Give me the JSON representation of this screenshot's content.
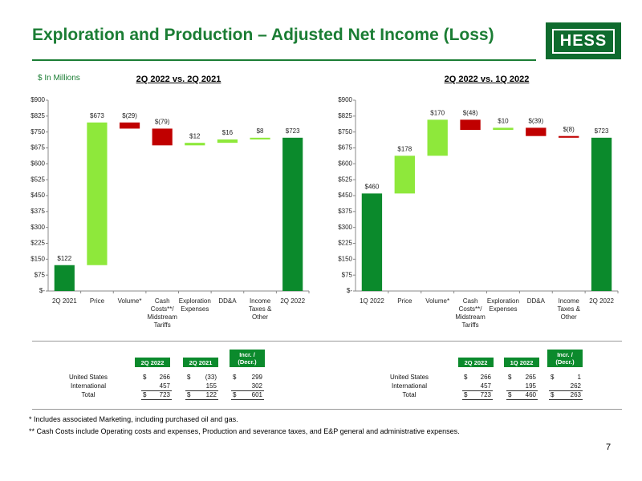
{
  "header": {
    "title": "Exploration and Production – Adjusted Net Income (Loss)",
    "logo": "HESS",
    "units": "$ In Millions"
  },
  "chart_data": [
    {
      "type": "waterfall",
      "title": "2Q 2022 vs. 2Q 2021",
      "categories": [
        "2Q 2021",
        "Price",
        "Volume*",
        "Cash Costs**/ Midstream Tariffs",
        "Exploration Expenses",
        "DD&A",
        "Income Taxes & Other",
        "2Q 2022"
      ],
      "values": [
        122,
        673,
        -29,
        -79,
        12,
        16,
        8,
        723
      ],
      "value_labels": [
        "$122",
        "$673",
        "$(29)",
        "$(79)",
        "$12",
        "$16",
        "$8",
        "$723"
      ],
      "colors": {
        "total": "#0b8a2c",
        "increase": "#8ee83b",
        "decrease": "#c00000"
      },
      "ylim": [
        0,
        900
      ],
      "yticks": [
        {
          "value": 0,
          "label": "$-"
        },
        {
          "value": 75,
          "label": "$75"
        },
        {
          "value": 150,
          "label": "$150"
        },
        {
          "value": 225,
          "label": "$225"
        },
        {
          "value": 300,
          "label": "$300"
        },
        {
          "value": 375,
          "label": "$375"
        },
        {
          "value": 450,
          "label": "$450"
        },
        {
          "value": 525,
          "label": "$525"
        },
        {
          "value": 600,
          "label": "$600"
        },
        {
          "value": 675,
          "label": "$675"
        },
        {
          "value": 750,
          "label": "$750"
        },
        {
          "value": 825,
          "label": "$825"
        },
        {
          "value": 900,
          "label": "$900"
        }
      ]
    },
    {
      "type": "waterfall",
      "title": "2Q 2022 vs. 1Q 2022",
      "categories": [
        "1Q 2022",
        "Price",
        "Volume*",
        "Cash Costs**/ Midstream Tariffs",
        "Exploration Expenses",
        "DD&A",
        "Income Taxes & Other",
        "2Q 2022"
      ],
      "values": [
        460,
        178,
        170,
        -48,
        10,
        -39,
        -8,
        723
      ],
      "value_labels": [
        "$460",
        "$178",
        "$170",
        "$(48)",
        "$10",
        "$(39)",
        "$(8)",
        "$723"
      ],
      "colors": {
        "total": "#0b8a2c",
        "increase": "#8ee83b",
        "decrease": "#c00000"
      },
      "ylim": [
        0,
        900
      ],
      "yticks": [
        {
          "value": 0,
          "label": "$-"
        },
        {
          "value": 75,
          "label": "$75"
        },
        {
          "value": 150,
          "label": "$150"
        },
        {
          "value": 225,
          "label": "$225"
        },
        {
          "value": 300,
          "label": "$300"
        },
        {
          "value": 375,
          "label": "$375"
        },
        {
          "value": 450,
          "label": "$450"
        },
        {
          "value": 525,
          "label": "$525"
        },
        {
          "value": 600,
          "label": "$600"
        },
        {
          "value": 675,
          "label": "$675"
        },
        {
          "value": 750,
          "label": "$750"
        },
        {
          "value": 825,
          "label": "$825"
        },
        {
          "value": 900,
          "label": "$900"
        }
      ]
    }
  ],
  "tables": [
    {
      "columns": [
        "2Q 2022",
        "2Q 2021",
        "Incr. / (Decr.)"
      ],
      "rows": [
        {
          "label": "United States",
          "cells": [
            {
              "sign": "$",
              "value": "266"
            },
            {
              "sign": "$",
              "value": "(33)"
            },
            {
              "sign": "$",
              "value": "299"
            }
          ]
        },
        {
          "label": "International",
          "cells": [
            {
              "value": "457"
            },
            {
              "value": "155"
            },
            {
              "value": "302"
            }
          ]
        },
        {
          "label": "Total",
          "cells": [
            {
              "sign": "$",
              "value": "723"
            },
            {
              "sign": "$",
              "value": "122"
            },
            {
              "sign": "$",
              "value": "601"
            }
          ]
        }
      ]
    },
    {
      "columns": [
        "2Q 2022",
        "1Q 2022",
        "Incr. / (Decr.)"
      ],
      "rows": [
        {
          "label": "United States",
          "cells": [
            {
              "sign": "$",
              "value": "266"
            },
            {
              "sign": "$",
              "value": "265"
            },
            {
              "sign": "$",
              "value": "1"
            }
          ]
        },
        {
          "label": "International",
          "cells": [
            {
              "value": "457"
            },
            {
              "value": "195"
            },
            {
              "value": "262"
            }
          ]
        },
        {
          "label": "Total",
          "cells": [
            {
              "sign": "$",
              "value": "723"
            },
            {
              "sign": "$",
              "value": "460"
            },
            {
              "sign": "$",
              "value": "263"
            }
          ]
        }
      ]
    }
  ],
  "footnotes": [
    "*  Includes associated Marketing, including purchased oil and gas.",
    "** Cash Costs include Operating costs and expenses, Production and severance taxes, and E&P general and administrative expenses."
  ],
  "page_number": "7"
}
